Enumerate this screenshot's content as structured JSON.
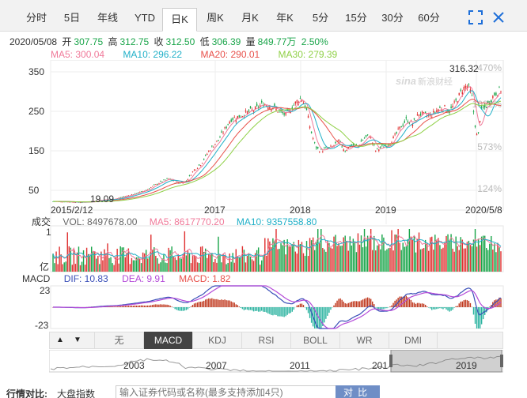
{
  "tabs": [
    {
      "label": "分时",
      "active": false
    },
    {
      "label": "5日",
      "active": false
    },
    {
      "label": "年线",
      "active": false
    },
    {
      "label": "YTD",
      "active": false
    },
    {
      "label": "日K",
      "active": true
    },
    {
      "label": "周K",
      "active": false
    },
    {
      "label": "月K",
      "active": false
    },
    {
      "label": "年K",
      "active": false
    },
    {
      "label": "5分",
      "active": false
    },
    {
      "label": "15分",
      "active": false
    },
    {
      "label": "30分",
      "active": false
    },
    {
      "label": "60分",
      "active": false
    }
  ],
  "info": {
    "date": "2020/05/08",
    "open_label": "开",
    "open": "307.75",
    "high_label": "高",
    "high": "312.75",
    "close_label": "收",
    "close": "312.50",
    "low_label": "低",
    "low": "306.39",
    "vol_label": "量",
    "vol": "849.77万",
    "change": "2.50%"
  },
  "ma": {
    "ma5": "MA5: 300.04",
    "ma10": "MA10: 296.22",
    "ma20": "MA20: 290.01",
    "ma30": "MA30: 279.39"
  },
  "colors": {
    "up": "#e03131",
    "down": "#1aa54a",
    "ma5": "#f07a9a",
    "ma10": "#21b0c8",
    "ma20": "#e8504a",
    "ma30": "#8fd046",
    "dif": "#3a4fb8",
    "dea": "#b44ad8"
  },
  "main_chart": {
    "y_ticks": [
      "350",
      "250",
      "150",
      "50"
    ],
    "y_values": [
      350,
      250,
      150,
      50
    ],
    "y_min": 0,
    "y_max": 380,
    "pct_labels": [
      "470%",
      "1022%",
      "573%",
      "124%"
    ],
    "x_labels": [
      "2015/2/12",
      "2017",
      "2018",
      "2019",
      "2020/5/8"
    ],
    "max_label": "316.32",
    "min_label": "19.09",
    "watermark": "新浪财经",
    "watermark_logo": "sina"
  },
  "volume": {
    "label": "成交",
    "vol": "VOL: 8497678.00",
    "ma5": "MA5: 8617770.20",
    "ma10": "MA10: 9357558.80",
    "y_top": "1",
    "y_unit": "亿"
  },
  "macd": {
    "label": "MACD",
    "dif": "DIF: 10.83",
    "dea": "DEA: 9.91",
    "macd": "MACD: 1.82",
    "y_top": "23",
    "y_bottom": "-23"
  },
  "indicators": [
    {
      "label": "无",
      "active": false
    },
    {
      "label": "MACD",
      "active": true
    },
    {
      "label": "KDJ",
      "active": false
    },
    {
      "label": "RSI",
      "active": false
    },
    {
      "label": "BOLL",
      "active": false
    },
    {
      "label": "WR",
      "active": false
    },
    {
      "label": "DMI",
      "active": false
    }
  ],
  "overview": {
    "years": [
      "2003",
      "2007",
      "2011",
      "201",
      "2019"
    ]
  },
  "compare": {
    "label": "行情对比:",
    "select": "大盘指数",
    "placeholder": "输入证券代码或名称(最多支持添加4只)",
    "button": "对比"
  }
}
